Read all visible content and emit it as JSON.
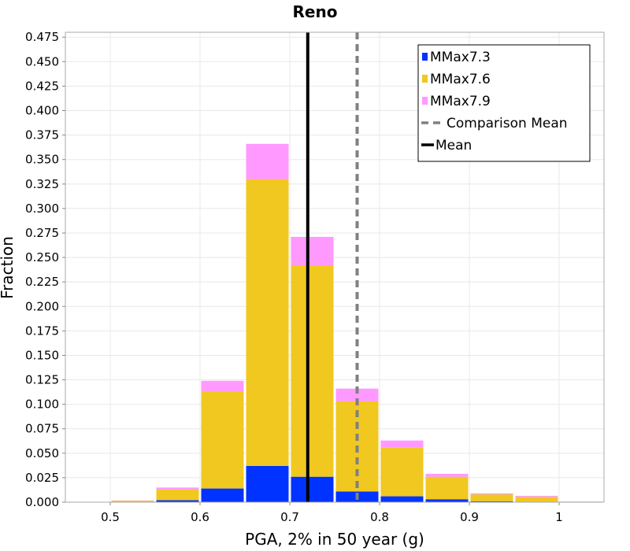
{
  "chart_data": {
    "type": "bar",
    "stacked": true,
    "title": "Reno",
    "xlabel": "PGA, 2% in 50 year (g)",
    "ylabel": "Fraction",
    "xlim": [
      0.45,
      1.05
    ],
    "ylim": [
      0,
      0.48
    ],
    "x_ticks": [
      0.5,
      0.6,
      0.7,
      0.8,
      0.9,
      1.0
    ],
    "x_tick_labels": [
      "0.5",
      "0.6",
      "0.7",
      "0.8",
      "0.9",
      "1"
    ],
    "y_ticks": [
      0,
      0.025,
      0.05,
      0.075,
      0.1,
      0.125,
      0.15,
      0.175,
      0.2,
      0.225,
      0.25,
      0.275,
      0.3,
      0.325,
      0.35,
      0.375,
      0.4,
      0.425,
      0.45,
      0.475
    ],
    "y_tick_labels": [
      "0.000",
      "0.025",
      "0.050",
      "0.075",
      "0.100",
      "0.125",
      "0.150",
      "0.175",
      "0.200",
      "0.225",
      "0.250",
      "0.275",
      "0.300",
      "0.325",
      "0.350",
      "0.375",
      "0.400",
      "0.425",
      "0.450",
      "0.475"
    ],
    "grid": true,
    "legend_position": "top-right",
    "bin_width": 0.05,
    "bin_centers": [
      0.475,
      0.525,
      0.575,
      0.625,
      0.675,
      0.725,
      0.775,
      0.825,
      0.875,
      0.925,
      0.975,
      1.025
    ],
    "series": [
      {
        "name": "MMax7.3",
        "color": "#0033ff",
        "values": [
          0.0,
          0.0,
          0.002,
          0.014,
          0.037,
          0.026,
          0.011,
          0.006,
          0.003,
          0.001,
          0.0005,
          0.0
        ]
      },
      {
        "name": "MMax7.6",
        "color": "#f0c820",
        "values": [
          0.0,
          0.0015,
          0.011,
          0.099,
          0.293,
          0.216,
          0.092,
          0.05,
          0.023,
          0.007,
          0.005,
          0.0005
        ]
      },
      {
        "name": "MMax7.9",
        "color": "#ff99ff",
        "values": [
          0.0,
          0.0003,
          0.002,
          0.011,
          0.036,
          0.029,
          0.013,
          0.007,
          0.003,
          0.001,
          0.001,
          0.0002
        ]
      }
    ],
    "vertical_lines": [
      {
        "name": "Mean",
        "x": 0.72,
        "color": "#000000",
        "style": "solid"
      },
      {
        "name": "Comparison Mean",
        "x": 0.775,
        "color": "#808080",
        "style": "dashed"
      }
    ]
  }
}
